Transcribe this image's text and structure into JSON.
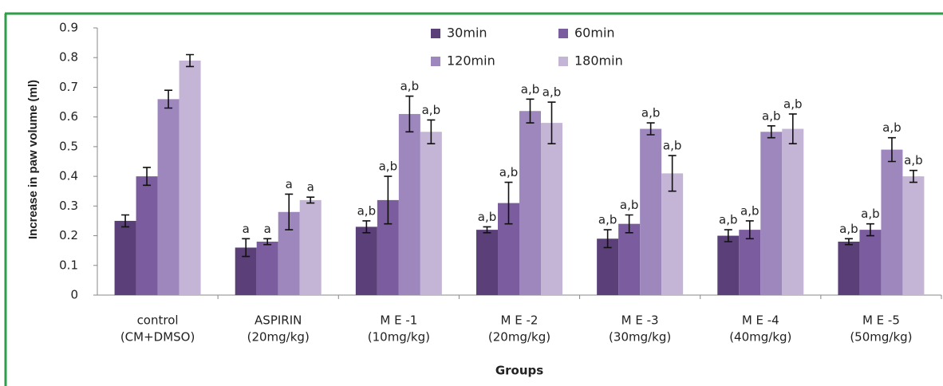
{
  "chart_data": {
    "type": "bar",
    "y_label": "Increase in paw volume (ml)",
    "x_label": "Groups",
    "categories": [
      [
        "control",
        "(CM+DMSO)"
      ],
      [
        "ASPIRIN",
        "(20mg/kg)"
      ],
      [
        "M E -1",
        "(10mg/kg)"
      ],
      [
        "M E -2",
        "(20mg/kg)"
      ],
      [
        "M E -3",
        "(30mg/kg)"
      ],
      [
        "M E -4",
        "(40mg/kg)"
      ],
      [
        "M E -5",
        "(50mg/kg)"
      ]
    ],
    "ylim": [
      0,
      0.9
    ],
    "yticks": [
      0,
      0.1,
      0.2,
      0.3,
      0.4,
      0.5,
      0.6,
      0.7,
      0.8,
      0.9
    ],
    "series": [
      {
        "name": "30min",
        "color": "#5b3f78",
        "values": [
          0.25,
          0.16,
          0.23,
          0.22,
          0.19,
          0.2,
          0.18
        ],
        "errors": [
          0.02,
          0.03,
          0.02,
          0.01,
          0.03,
          0.02,
          0.01
        ],
        "labels": [
          null,
          "a",
          "a,b",
          "a,b",
          "a,b",
          "a,b",
          "a,b"
        ]
      },
      {
        "name": "60min",
        "color": "#7b5c9e",
        "values": [
          0.4,
          0.18,
          0.32,
          0.31,
          0.24,
          0.22,
          0.22
        ],
        "errors": [
          0.03,
          0.01,
          0.08,
          0.07,
          0.03,
          0.03,
          0.02
        ],
        "labels": [
          null,
          "a",
          "a,b",
          "a,b",
          "a,b",
          "a,b",
          "a,b"
        ]
      },
      {
        "name": "120min",
        "color": "#9d87bd",
        "values": [
          0.66,
          0.28,
          0.61,
          0.62,
          0.56,
          0.55,
          0.49
        ],
        "errors": [
          0.03,
          0.06,
          0.06,
          0.04,
          0.02,
          0.02,
          0.04
        ],
        "labels": [
          null,
          "a",
          "a,b",
          "a,b",
          "a,b",
          "a,b",
          "a,b"
        ]
      },
      {
        "name": "180min",
        "color": "#c4b5d6",
        "values": [
          0.79,
          0.32,
          0.55,
          0.58,
          0.41,
          0.56,
          0.4
        ],
        "errors": [
          0.02,
          0.01,
          0.04,
          0.07,
          0.06,
          0.05,
          0.02
        ],
        "labels": [
          null,
          "a",
          "a,b",
          "a,b",
          "a,b",
          "a,b",
          "a,b"
        ]
      }
    ]
  }
}
